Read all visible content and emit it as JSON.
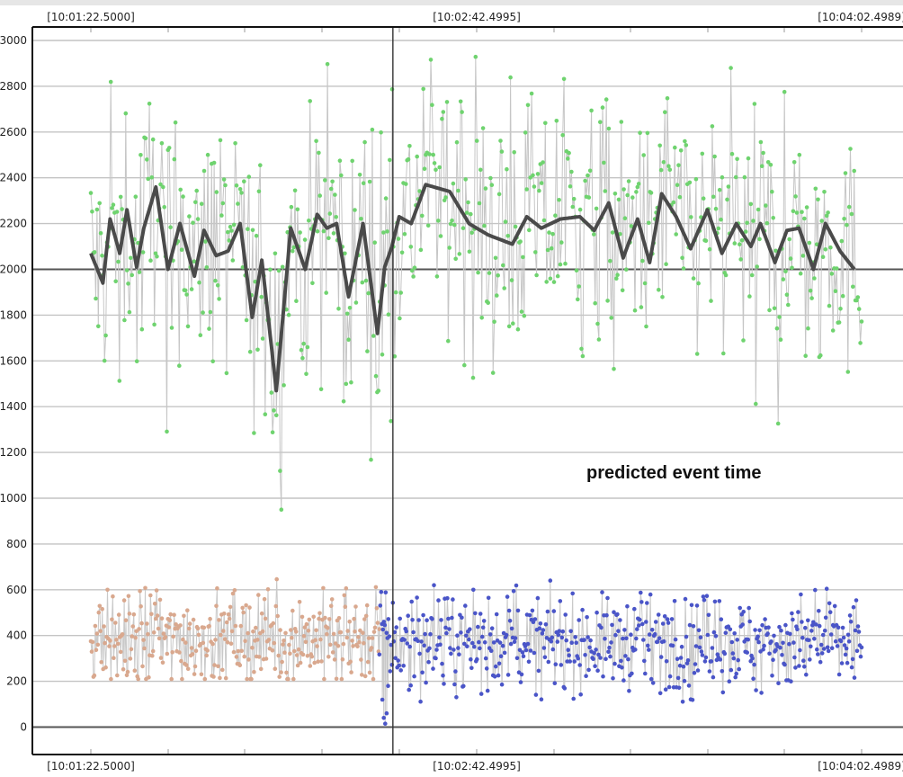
{
  "chart_data": {
    "type": "line",
    "title": "",
    "xlabel": "",
    "ylabel": "",
    "xlim_seconds": [
      82.5,
      242.4989
    ],
    "ylim": [
      -120,
      3060
    ],
    "yticks": [
      0,
      200,
      400,
      600,
      800,
      1000,
      1200,
      1400,
      1600,
      1800,
      2000,
      2200,
      2400,
      2600,
      2800,
      3000
    ],
    "time_labels": [
      "[10:01:22.5000]",
      "[10:02:42.4995]",
      "[10:04:02.4989]"
    ],
    "grid": true,
    "baseline_value": 2000,
    "event_marker": {
      "label": "predicted event time",
      "time_seconds": 145.2
    },
    "colors": {
      "upper_points": "#6fd36f",
      "upper_trace": "#c6c6c6",
      "smooth_line": "#4a4a4a",
      "lower_before": "#d9a88e",
      "lower_after": "#4a55c8",
      "lower_trace": "#c9c9c9",
      "grid": "#c4c4c4",
      "baseline": "#555555"
    },
    "series": [
      {
        "name": "",
        "kind": "smooth",
        "x": [
          82.5,
          85,
          86.5,
          88.5,
          90,
          92,
          93.5,
          96,
          98.5,
          101,
          104,
          106,
          108.5,
          111,
          113.5,
          116,
          118,
          121,
          124,
          127,
          129.5,
          131.5,
          133.5,
          136,
          139,
          142,
          143.5,
          145,
          146.5,
          149,
          152,
          157,
          161,
          165,
          170,
          173,
          176,
          180,
          184,
          187,
          190,
          193,
          196,
          198.5,
          201,
          204,
          207,
          210.5,
          213.5,
          216.5,
          219.5,
          221.5,
          224.5,
          227,
          229.5,
          232.5,
          235,
          238,
          241
        ],
        "y": [
          2070,
          1940,
          2220,
          2070,
          2260,
          2010,
          2180,
          2360,
          2000,
          2200,
          1970,
          2170,
          2060,
          2080,
          2200,
          1790,
          2040,
          1470,
          2180,
          2000,
          2240,
          2180,
          2200,
          1880,
          2200,
          1720,
          2010,
          2100,
          2230,
          2200,
          2370,
          2340,
          2200,
          2150,
          2110,
          2230,
          2180,
          2220,
          2230,
          2170,
          2290,
          2050,
          2220,
          2030,
          2330,
          2230,
          2090,
          2260,
          2070,
          2200,
          2100,
          2200,
          2030,
          2170,
          2180,
          2000,
          2200,
          2080,
          2000
        ]
      },
      {
        "name": "",
        "kind": "noisy-upper",
        "mean": 2150,
        "band": [
          1700,
          2650
        ],
        "range": [
          950,
          2930
        ],
        "x_range": [
          82.5,
          242.4989
        ]
      },
      {
        "name": "",
        "kind": "noisy-lower-before",
        "mean": 390,
        "band": [
          200,
          560
        ],
        "range": [
          110,
          650
        ],
        "x_range": [
          82.5,
          142.4
        ]
      },
      {
        "name": "",
        "kind": "noisy-lower-after",
        "mean": 370,
        "band": [
          180,
          560
        ],
        "range": [
          10,
          640
        ],
        "x_range": [
          142.4,
          242.4989
        ]
      }
    ]
  }
}
